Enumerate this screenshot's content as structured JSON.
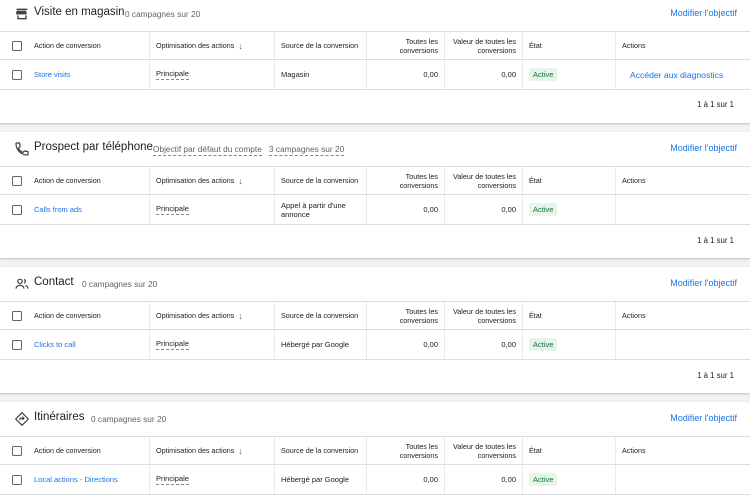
{
  "columns": {
    "action": "Action de conversion",
    "optimisation": "Optimisation des actions",
    "source": "Source de la conversion",
    "all_conv": "Toutes les conversions",
    "all_value": "Valeur de toutes les conversions",
    "status": "État",
    "actions": "Actions"
  },
  "sections": [
    {
      "title": "Visite en magasin",
      "subtitle": "0 campagnes sur 20",
      "edit_link": "Modifier l'objectif",
      "row": {
        "action": "Store visits",
        "optimisation": "Principale",
        "source": "Magasin",
        "all_conv": "0,00",
        "all_value": "0,00",
        "status": "Active",
        "action_link": "Accéder aux diagnostics"
      },
      "pagination": "1 à 1 sur 1"
    },
    {
      "title": "Prospect par téléphone",
      "default_label": "Objectif par défaut du compte",
      "subtitle": "3 campagnes sur 20",
      "edit_link": "Modifier l'objectif",
      "row": {
        "action": "Calls from ads",
        "optimisation": "Principale",
        "source": "Appel à partir d'une annonce",
        "all_conv": "0,00",
        "all_value": "0,00",
        "status": "Active"
      },
      "pagination": "1 à 1 sur 1"
    },
    {
      "title": "Contact",
      "subtitle": "0 campagnes sur 20",
      "edit_link": "Modifier l'objectif",
      "row": {
        "action": "Clicks to call",
        "optimisation": "Principale",
        "source": "Hébergé par Google",
        "all_conv": "0,00",
        "all_value": "0,00",
        "status": "Active"
      },
      "pagination": "1 à 1 sur 1"
    },
    {
      "title": "Itinéraires",
      "subtitle": "0 campagnes sur 20",
      "edit_link": "Modifier l'objectif",
      "row": {
        "action": "Local actions - Directions",
        "optimisation": "Principale",
        "source": "Hébergé par Google",
        "all_conv": "0,00",
        "all_value": "0,00",
        "status": "Active"
      }
    }
  ],
  "icons": [
    "store-icon",
    "phone-icon",
    "contacts-icon",
    "directions-icon",
    "sort-down-arrow-icon"
  ],
  "colors": {
    "link": "#1a73e8",
    "active_bg": "#e6f4ea",
    "active_text": "#137333"
  }
}
